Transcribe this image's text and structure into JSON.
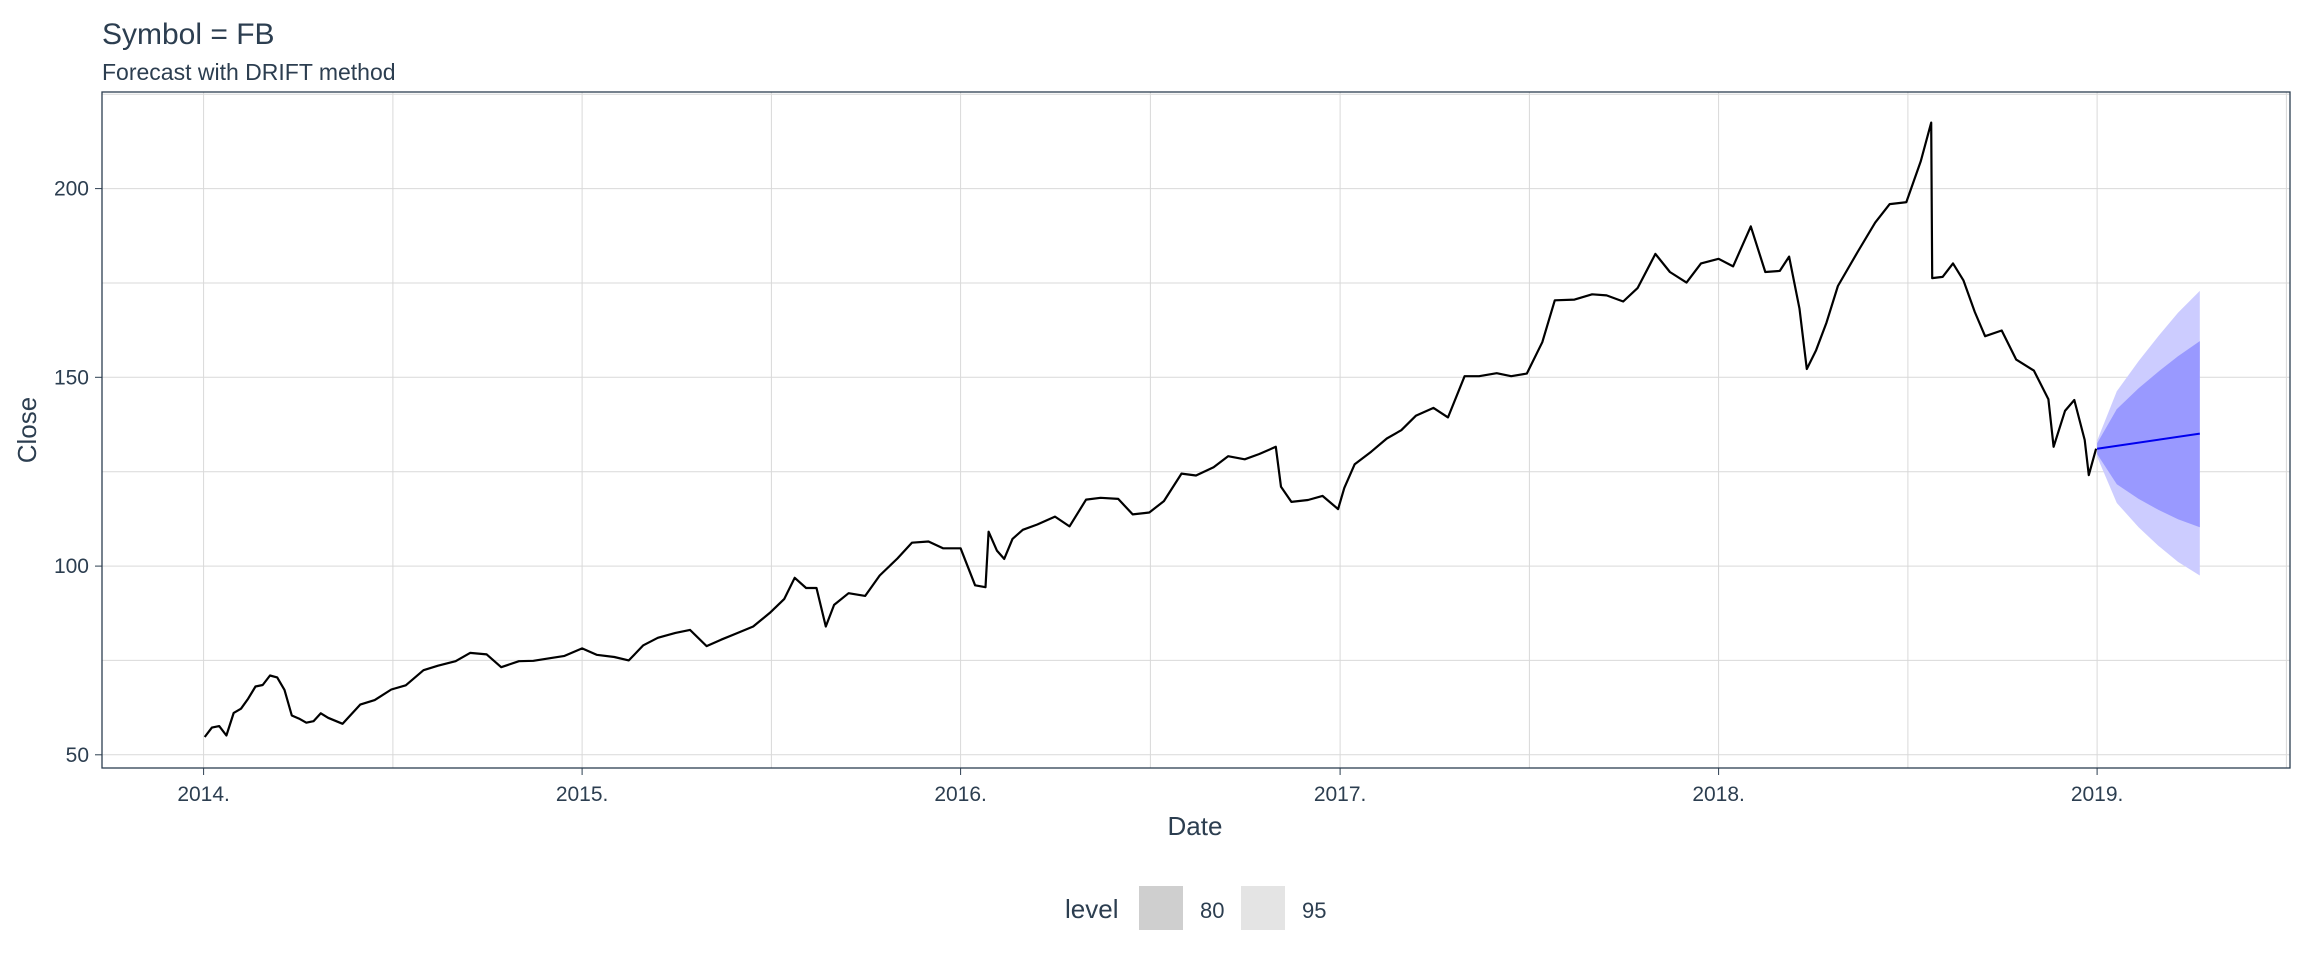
{
  "chart_data": {
    "type": "line",
    "title": "Symbol = FB",
    "subtitle": "Forecast with DRIFT method",
    "xlabel": "Date",
    "ylabel": "Close",
    "xlim": [
      "2013-09-25",
      "2019-07-06"
    ],
    "ylim": [
      46.5,
      225.6
    ],
    "x_ticks": [
      "2014-01-01",
      "2015-01-01",
      "2016-01-01",
      "2017-01-01",
      "2018-01-01",
      "2019-01-01"
    ],
    "x_tick_labels": [
      "2014.",
      "2015.",
      "2016.",
      "2017.",
      "2018.",
      "2019."
    ],
    "y_ticks": [
      50,
      100,
      150,
      200
    ],
    "y_tick_labels": [
      "50",
      "100",
      "150",
      "200"
    ],
    "grid": true,
    "legend": {
      "title": "level",
      "position": "bottom",
      "entries": [
        {
          "label": "80",
          "color": "#cfcfcf"
        },
        {
          "label": "95",
          "color": "#e4e4e4"
        }
      ]
    },
    "series": [
      {
        "type": "line",
        "color": "#000000",
        "points": [
          [
            "2014-01-02",
            54.7
          ],
          [
            "2014-01-09",
            57.2
          ],
          [
            "2014-01-16",
            57.6
          ],
          [
            "2014-01-23",
            55.1
          ],
          [
            "2014-01-30",
            61.1
          ],
          [
            "2014-02-06",
            62.2
          ],
          [
            "2014-02-13",
            64.9
          ],
          [
            "2014-02-20",
            68.1
          ],
          [
            "2014-02-27",
            68.5
          ],
          [
            "2014-03-06",
            71.0
          ],
          [
            "2014-03-13",
            70.5
          ],
          [
            "2014-03-20",
            67.2
          ],
          [
            "2014-03-27",
            60.4
          ],
          [
            "2014-04-03",
            59.6
          ],
          [
            "2014-04-10",
            58.5
          ],
          [
            "2014-04-17",
            58.9
          ],
          [
            "2014-04-24",
            61.0
          ],
          [
            "2014-05-01",
            59.8
          ],
          [
            "2014-05-15",
            58.2
          ],
          [
            "2014-06-01",
            63.3
          ],
          [
            "2014-06-15",
            64.5
          ],
          [
            "2014-07-01",
            67.3
          ],
          [
            "2014-07-15",
            68.4
          ],
          [
            "2014-08-01",
            72.4
          ],
          [
            "2014-08-15",
            73.6
          ],
          [
            "2014-09-01",
            74.8
          ],
          [
            "2014-09-15",
            77.0
          ],
          [
            "2014-10-01",
            76.6
          ],
          [
            "2014-10-15",
            73.2
          ],
          [
            "2014-11-01",
            74.8
          ],
          [
            "2014-11-15",
            74.9
          ],
          [
            "2014-12-01",
            75.6
          ],
          [
            "2014-12-15",
            76.2
          ],
          [
            "2015-01-01",
            78.2
          ],
          [
            "2015-01-15",
            76.5
          ],
          [
            "2015-02-01",
            75.9
          ],
          [
            "2015-02-15",
            75.0
          ],
          [
            "2015-03-01",
            79.0
          ],
          [
            "2015-03-15",
            81.0
          ],
          [
            "2015-04-01",
            82.3
          ],
          [
            "2015-04-15",
            83.1
          ],
          [
            "2015-05-01",
            78.8
          ],
          [
            "2015-05-15",
            80.5
          ],
          [
            "2015-06-01",
            82.4
          ],
          [
            "2015-06-15",
            84.0
          ],
          [
            "2015-07-01",
            87.6
          ],
          [
            "2015-07-15",
            91.3
          ],
          [
            "2015-07-25",
            96.9
          ],
          [
            "2015-08-05",
            94.2
          ],
          [
            "2015-08-15",
            94.2
          ],
          [
            "2015-08-24",
            84.0
          ],
          [
            "2015-09-01",
            89.7
          ],
          [
            "2015-09-15",
            92.8
          ],
          [
            "2015-10-01",
            92.1
          ],
          [
            "2015-10-15",
            97.5
          ],
          [
            "2015-11-01",
            102.0
          ],
          [
            "2015-11-15",
            106.2
          ],
          [
            "2015-12-01",
            106.5
          ],
          [
            "2015-12-15",
            104.7
          ],
          [
            "2016-01-01",
            104.7
          ],
          [
            "2016-01-15",
            94.9
          ],
          [
            "2016-01-25",
            94.4
          ],
          [
            "2016-01-28",
            109.1
          ],
          [
            "2016-02-05",
            104.1
          ],
          [
            "2016-02-12",
            101.9
          ],
          [
            "2016-02-20",
            107.2
          ],
          [
            "2016-03-01",
            109.6
          ],
          [
            "2016-03-15",
            111.0
          ],
          [
            "2016-04-01",
            113.1
          ],
          [
            "2016-04-15",
            110.5
          ],
          [
            "2016-05-01",
            117.6
          ],
          [
            "2016-05-15",
            118.1
          ],
          [
            "2016-06-01",
            117.8
          ],
          [
            "2016-06-15",
            113.7
          ],
          [
            "2016-07-01",
            114.2
          ],
          [
            "2016-07-15",
            117.2
          ],
          [
            "2016-08-01",
            124.5
          ],
          [
            "2016-08-15",
            124.0
          ],
          [
            "2016-09-01",
            126.2
          ],
          [
            "2016-09-15",
            129.1
          ],
          [
            "2016-10-01",
            128.3
          ],
          [
            "2016-10-15",
            129.7
          ],
          [
            "2016-10-31",
            131.6
          ],
          [
            "2016-11-05",
            121.0
          ],
          [
            "2016-11-15",
            117.0
          ],
          [
            "2016-12-01",
            117.5
          ],
          [
            "2016-12-15",
            118.6
          ],
          [
            "2016-12-30",
            115.1
          ],
          [
            "2017-01-05",
            120.7
          ],
          [
            "2017-01-15",
            127.0
          ],
          [
            "2017-01-31",
            130.3
          ],
          [
            "2017-02-15",
            133.8
          ],
          [
            "2017-03-01",
            136.0
          ],
          [
            "2017-03-15",
            139.8
          ],
          [
            "2017-04-01",
            141.9
          ],
          [
            "2017-04-15",
            139.4
          ],
          [
            "2017-05-01",
            150.3
          ],
          [
            "2017-05-15",
            150.3
          ],
          [
            "2017-06-01",
            151.1
          ],
          [
            "2017-06-15",
            150.3
          ],
          [
            "2017-06-30",
            151.0
          ],
          [
            "2017-07-15",
            159.3
          ],
          [
            "2017-07-27",
            170.4
          ],
          [
            "2017-08-15",
            170.6
          ],
          [
            "2017-09-01",
            172.0
          ],
          [
            "2017-09-15",
            171.7
          ],
          [
            "2017-10-01",
            170.1
          ],
          [
            "2017-10-15",
            173.7
          ],
          [
            "2017-11-01",
            182.7
          ],
          [
            "2017-11-15",
            177.9
          ],
          [
            "2017-12-01",
            175.1
          ],
          [
            "2017-12-15",
            180.2
          ],
          [
            "2018-01-01",
            181.4
          ],
          [
            "2018-01-15",
            179.4
          ],
          [
            "2018-02-01",
            190.0
          ],
          [
            "2018-02-15",
            177.9
          ],
          [
            "2018-03-01",
            178.2
          ],
          [
            "2018-03-10",
            182.0
          ],
          [
            "2018-03-20",
            168.2
          ],
          [
            "2018-03-27",
            152.2
          ],
          [
            "2018-04-05",
            157.2
          ],
          [
            "2018-04-15",
            164.5
          ],
          [
            "2018-04-26",
            174.2
          ],
          [
            "2018-05-15",
            183.2
          ],
          [
            "2018-06-01",
            191.0
          ],
          [
            "2018-06-15",
            195.9
          ],
          [
            "2018-07-01",
            196.4
          ],
          [
            "2018-07-15",
            207.3
          ],
          [
            "2018-07-25",
            217.5
          ],
          [
            "2018-07-26",
            176.3
          ],
          [
            "2018-08-05",
            176.6
          ],
          [
            "2018-08-15",
            180.2
          ],
          [
            "2018-08-25",
            175.7
          ],
          [
            "2018-09-05",
            167.3
          ],
          [
            "2018-09-15",
            160.9
          ],
          [
            "2018-10-01",
            162.4
          ],
          [
            "2018-10-15",
            154.7
          ],
          [
            "2018-11-01",
            151.8
          ],
          [
            "2018-11-15",
            144.2
          ],
          [
            "2018-11-20",
            131.6
          ],
          [
            "2018-12-01",
            141.1
          ],
          [
            "2018-12-10",
            144.0
          ],
          [
            "2018-12-20",
            133.4
          ],
          [
            "2018-12-24",
            124.1
          ],
          [
            "2018-12-31",
            131.1
          ]
        ]
      },
      {
        "type": "forecast",
        "color": "#0000ee",
        "points": [
          [
            "2019-01-01",
            131.1
          ],
          [
            "2019-04-10",
            135.1
          ]
        ]
      }
    ],
    "bands": [
      {
        "level": "95",
        "color": "#ccccff",
        "x": [
          "2019-01-01",
          "2019-01-20",
          "2019-02-10",
          "2019-03-01",
          "2019-03-20",
          "2019-04-10"
        ],
        "lower": [
          129.0,
          116.7,
          110.3,
          105.4,
          101.1,
          97.5
        ],
        "upper": [
          133.2,
          146.3,
          154.3,
          160.9,
          167.1,
          172.9
        ]
      },
      {
        "level": "80",
        "color": "#9999ff",
        "x": [
          "2019-01-01",
          "2019-01-20",
          "2019-02-10",
          "2019-03-01",
          "2019-03-20",
          "2019-04-10"
        ],
        "lower": [
          129.7,
          121.7,
          117.8,
          114.9,
          112.4,
          110.3
        ],
        "upper": [
          132.5,
          141.6,
          147.1,
          151.5,
          155.6,
          159.6
        ]
      }
    ]
  }
}
